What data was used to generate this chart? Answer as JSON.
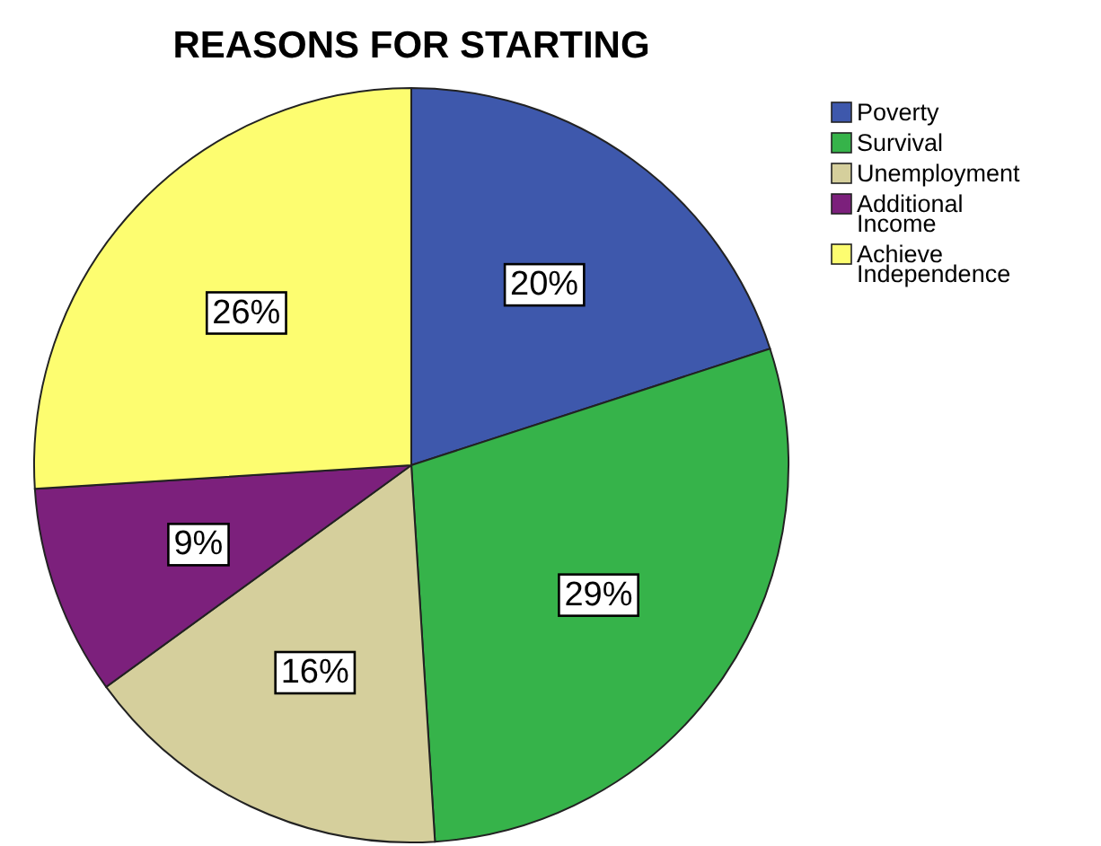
{
  "chart_data": {
    "type": "pie",
    "title": "REASONS FOR STARTING",
    "categories": [
      "Poverty",
      "Survival",
      "Unemployment",
      "Additional Income",
      "Achieve Independence"
    ],
    "values": [
      20,
      29,
      16,
      9,
      26
    ],
    "value_labels": [
      "20%",
      "29%",
      "16%",
      "9%",
      "26%"
    ],
    "colors": [
      "#3e58ac",
      "#36b34a",
      "#d5cf9c",
      "#7c207c",
      "#fdfd70"
    ],
    "legend": "top right"
  }
}
